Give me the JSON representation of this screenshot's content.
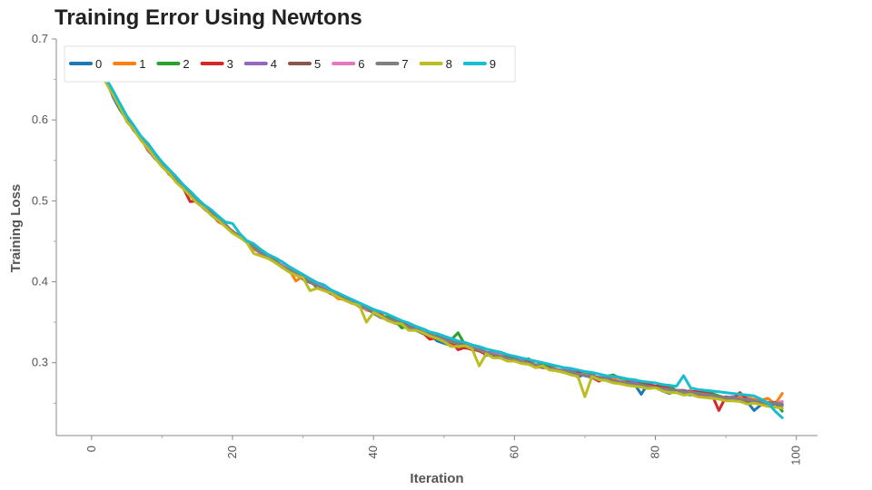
{
  "chart_data": {
    "type": "line",
    "title": "Training Error Using Newtons",
    "xlabel": "Iteration",
    "ylabel": "Training Loss",
    "xlim": [
      -5,
      103
    ],
    "ylim": [
      0.21,
      0.7
    ],
    "x_ticks": [
      0,
      20,
      40,
      60,
      80,
      100
    ],
    "y_ticks": [
      0.3,
      0.4,
      0.5,
      0.6,
      0.7
    ],
    "grid": false,
    "legend_position": "top-left",
    "colors": [
      "#1f77b4",
      "#ff7f0e",
      "#2ca02c",
      "#d62728",
      "#9467bd",
      "#8c564b",
      "#e377c2",
      "#7f7f7f",
      "#bcbd22",
      "#17becf"
    ],
    "x": [
      0,
      1,
      2,
      3,
      4,
      5,
      6,
      7,
      8,
      9,
      10,
      11,
      12,
      13,
      14,
      15,
      16,
      17,
      18,
      19,
      20,
      21,
      22,
      23,
      24,
      25,
      26,
      27,
      28,
      29,
      30,
      31,
      32,
      33,
      34,
      35,
      36,
      37,
      38,
      39,
      40,
      41,
      42,
      43,
      44,
      45,
      46,
      47,
      48,
      49,
      50,
      51,
      52,
      53,
      54,
      55,
      56,
      57,
      58,
      59,
      60,
      61,
      62,
      63,
      64,
      65,
      66,
      67,
      68,
      69,
      70,
      71,
      72,
      73,
      74,
      75,
      76,
      77,
      78,
      79,
      80,
      81,
      82,
      83,
      84,
      85,
      86,
      87,
      88,
      89,
      90,
      91,
      92,
      93,
      94,
      95,
      96,
      97,
      98
    ],
    "series": [
      {
        "name": "0",
        "values": [
          0.682,
          0.668,
          0.654,
          0.629,
          0.613,
          0.6,
          0.587,
          0.577,
          0.567,
          0.555,
          0.545,
          0.537,
          0.525,
          0.516,
          0.51,
          0.5,
          0.492,
          0.482,
          0.476,
          0.47,
          0.462,
          0.455,
          0.451,
          0.444,
          0.438,
          0.43,
          0.427,
          0.42,
          0.416,
          0.413,
          0.403,
          0.399,
          0.397,
          0.393,
          0.386,
          0.38,
          0.379,
          0.374,
          0.372,
          0.369,
          0.361,
          0.356,
          0.356,
          0.351,
          0.346,
          0.342,
          0.34,
          0.336,
          0.335,
          0.327,
          0.324,
          0.321,
          0.324,
          0.318,
          0.318,
          0.316,
          0.309,
          0.311,
          0.308,
          0.307,
          0.306,
          0.3,
          0.3,
          0.297,
          0.296,
          0.293,
          0.29,
          0.288,
          0.291,
          0.282,
          0.286,
          0.282,
          0.279,
          0.28,
          0.278,
          0.275,
          0.275,
          0.274,
          0.261,
          0.275,
          0.27,
          0.265,
          0.262,
          0.266,
          0.262,
          0.26,
          0.264,
          0.258,
          0.257,
          0.258,
          0.256,
          0.255,
          0.253,
          0.252,
          0.241,
          0.248,
          0.247,
          0.249,
          0.244
        ]
      },
      {
        "name": "1",
        "values": [
          0.684,
          0.667,
          0.647,
          0.632,
          0.617,
          0.6,
          0.588,
          0.578,
          0.562,
          0.553,
          0.544,
          0.533,
          0.526,
          0.516,
          0.506,
          0.499,
          0.49,
          0.484,
          0.474,
          0.469,
          0.463,
          0.456,
          0.449,
          0.44,
          0.436,
          0.431,
          0.426,
          0.419,
          0.415,
          0.401,
          0.407,
          0.401,
          0.395,
          0.391,
          0.386,
          0.379,
          0.378,
          0.376,
          0.372,
          0.365,
          0.363,
          0.356,
          0.353,
          0.349,
          0.346,
          0.345,
          0.34,
          0.338,
          0.334,
          0.33,
          0.331,
          0.323,
          0.32,
          0.321,
          0.319,
          0.314,
          0.311,
          0.309,
          0.309,
          0.305,
          0.304,
          0.302,
          0.299,
          0.294,
          0.295,
          0.297,
          0.292,
          0.29,
          0.289,
          0.287,
          0.285,
          0.285,
          0.28,
          0.281,
          0.281,
          0.277,
          0.277,
          0.273,
          0.27,
          0.269,
          0.27,
          0.267,
          0.263,
          0.266,
          0.263,
          0.266,
          0.26,
          0.26,
          0.262,
          0.259,
          0.257,
          0.258,
          0.258,
          0.257,
          0.255,
          0.254,
          0.256,
          0.249,
          0.262
        ]
      },
      {
        "name": "2",
        "values": [
          0.68,
          0.667,
          0.654,
          0.634,
          0.614,
          0.6,
          0.589,
          0.578,
          0.565,
          0.555,
          0.544,
          0.533,
          0.526,
          0.516,
          0.508,
          0.5,
          0.492,
          0.484,
          0.478,
          0.47,
          0.462,
          0.456,
          0.449,
          0.443,
          0.435,
          0.43,
          0.427,
          0.419,
          0.417,
          0.409,
          0.406,
          0.403,
          0.392,
          0.391,
          0.387,
          0.383,
          0.379,
          0.375,
          0.372,
          0.37,
          0.365,
          0.356,
          0.357,
          0.353,
          0.343,
          0.345,
          0.342,
          0.337,
          0.336,
          0.331,
          0.329,
          0.328,
          0.337,
          0.322,
          0.317,
          0.317,
          0.312,
          0.31,
          0.313,
          0.309,
          0.305,
          0.302,
          0.305,
          0.297,
          0.3,
          0.295,
          0.292,
          0.29,
          0.29,
          0.288,
          0.286,
          0.287,
          0.278,
          0.283,
          0.285,
          0.281,
          0.28,
          0.275,
          0.274,
          0.272,
          0.27,
          0.269,
          0.272,
          0.265,
          0.262,
          0.264,
          0.262,
          0.265,
          0.262,
          0.259,
          0.256,
          0.257,
          0.254,
          0.254,
          0.253,
          0.25,
          0.247,
          0.251,
          0.24
        ]
      },
      {
        "name": "3",
        "values": [
          0.683,
          0.666,
          0.647,
          0.634,
          0.617,
          0.6,
          0.587,
          0.577,
          0.566,
          0.553,
          0.543,
          0.535,
          0.524,
          0.516,
          0.499,
          0.5,
          0.491,
          0.486,
          0.478,
          0.469,
          0.462,
          0.457,
          0.45,
          0.443,
          0.438,
          0.431,
          0.425,
          0.418,
          0.415,
          0.408,
          0.405,
          0.401,
          0.394,
          0.39,
          0.385,
          0.384,
          0.381,
          0.374,
          0.372,
          0.368,
          0.364,
          0.36,
          0.354,
          0.349,
          0.348,
          0.343,
          0.343,
          0.337,
          0.329,
          0.331,
          0.327,
          0.327,
          0.316,
          0.319,
          0.316,
          0.315,
          0.31,
          0.309,
          0.306,
          0.303,
          0.303,
          0.302,
          0.302,
          0.296,
          0.294,
          0.294,
          0.291,
          0.288,
          0.286,
          0.288,
          0.284,
          0.282,
          0.277,
          0.283,
          0.277,
          0.276,
          0.276,
          0.275,
          0.277,
          0.273,
          0.271,
          0.272,
          0.268,
          0.263,
          0.265,
          0.264,
          0.265,
          0.262,
          0.261,
          0.241,
          0.258,
          0.256,
          0.263,
          0.255,
          0.252,
          0.25,
          0.25,
          0.251,
          0.248
        ]
      },
      {
        "name": "4",
        "values": [
          0.682,
          0.667,
          0.649,
          0.63,
          0.617,
          0.599,
          0.59,
          0.577,
          0.563,
          0.552,
          0.545,
          0.534,
          0.524,
          0.517,
          0.508,
          0.499,
          0.492,
          0.484,
          0.477,
          0.471,
          0.462,
          0.455,
          0.451,
          0.443,
          0.434,
          0.431,
          0.424,
          0.42,
          0.414,
          0.412,
          0.404,
          0.402,
          0.395,
          0.391,
          0.387,
          0.382,
          0.377,
          0.376,
          0.37,
          0.368,
          0.364,
          0.359,
          0.352,
          0.352,
          0.349,
          0.343,
          0.342,
          0.338,
          0.333,
          0.332,
          0.33,
          0.326,
          0.326,
          0.323,
          0.32,
          0.317,
          0.313,
          0.312,
          0.309,
          0.306,
          0.304,
          0.303,
          0.298,
          0.297,
          0.294,
          0.294,
          0.291,
          0.291,
          0.29,
          0.286,
          0.285,
          0.284,
          0.282,
          0.281,
          0.278,
          0.277,
          0.276,
          0.276,
          0.272,
          0.271,
          0.27,
          0.268,
          0.267,
          0.266,
          0.266,
          0.264,
          0.262,
          0.261,
          0.26,
          0.257,
          0.257,
          0.258,
          0.255,
          0.255,
          0.253,
          0.252,
          0.251,
          0.25,
          0.247
        ]
      },
      {
        "name": "5",
        "values": [
          0.682,
          0.667,
          0.648,
          0.632,
          0.617,
          0.602,
          0.589,
          0.578,
          0.566,
          0.555,
          0.545,
          0.533,
          0.525,
          0.517,
          0.509,
          0.5,
          0.49,
          0.483,
          0.475,
          0.469,
          0.462,
          0.456,
          0.449,
          0.443,
          0.436,
          0.432,
          0.424,
          0.419,
          0.415,
          0.41,
          0.404,
          0.4,
          0.394,
          0.392,
          0.386,
          0.382,
          0.378,
          0.376,
          0.37,
          0.366,
          0.362,
          0.359,
          0.354,
          0.351,
          0.35,
          0.345,
          0.341,
          0.338,
          0.333,
          0.333,
          0.328,
          0.325,
          0.324,
          0.322,
          0.317,
          0.316,
          0.312,
          0.31,
          0.307,
          0.307,
          0.304,
          0.301,
          0.301,
          0.297,
          0.294,
          0.294,
          0.291,
          0.29,
          0.287,
          0.286,
          0.284,
          0.282,
          0.282,
          0.28,
          0.278,
          0.276,
          0.276,
          0.273,
          0.272,
          0.27,
          0.27,
          0.268,
          0.267,
          0.265,
          0.265,
          0.263,
          0.26,
          0.26,
          0.259,
          0.258,
          0.256,
          0.256,
          0.253,
          0.253,
          0.252,
          0.251,
          0.25,
          0.25,
          0.249
        ]
      },
      {
        "name": "6",
        "values": [
          0.682,
          0.668,
          0.651,
          0.632,
          0.617,
          0.599,
          0.589,
          0.577,
          0.564,
          0.555,
          0.543,
          0.536,
          0.524,
          0.517,
          0.509,
          0.499,
          0.49,
          0.483,
          0.476,
          0.469,
          0.462,
          0.456,
          0.449,
          0.443,
          0.435,
          0.431,
          0.425,
          0.421,
          0.417,
          0.41,
          0.405,
          0.402,
          0.396,
          0.392,
          0.386,
          0.382,
          0.377,
          0.375,
          0.369,
          0.366,
          0.365,
          0.357,
          0.355,
          0.351,
          0.348,
          0.344,
          0.341,
          0.338,
          0.335,
          0.332,
          0.328,
          0.326,
          0.323,
          0.321,
          0.32,
          0.316,
          0.312,
          0.311,
          0.309,
          0.305,
          0.303,
          0.302,
          0.299,
          0.298,
          0.295,
          0.293,
          0.292,
          0.29,
          0.288,
          0.286,
          0.285,
          0.283,
          0.281,
          0.279,
          0.278,
          0.277,
          0.275,
          0.273,
          0.272,
          0.271,
          0.269,
          0.268,
          0.267,
          0.265,
          0.264,
          0.263,
          0.262,
          0.261,
          0.259,
          0.258,
          0.257,
          0.256,
          0.255,
          0.254,
          0.253,
          0.252,
          0.25,
          0.25,
          0.252
        ]
      },
      {
        "name": "7",
        "values": [
          0.682,
          0.666,
          0.648,
          0.631,
          0.616,
          0.6,
          0.588,
          0.577,
          0.565,
          0.554,
          0.544,
          0.534,
          0.525,
          0.516,
          0.508,
          0.5,
          0.491,
          0.484,
          0.477,
          0.47,
          0.462,
          0.456,
          0.449,
          0.443,
          0.436,
          0.43,
          0.426,
          0.419,
          0.415,
          0.41,
          0.405,
          0.4,
          0.395,
          0.391,
          0.386,
          0.382,
          0.378,
          0.374,
          0.37,
          0.367,
          0.363,
          0.358,
          0.355,
          0.352,
          0.348,
          0.344,
          0.341,
          0.338,
          0.335,
          0.332,
          0.329,
          0.326,
          0.323,
          0.321,
          0.318,
          0.316,
          0.313,
          0.31,
          0.308,
          0.306,
          0.304,
          0.301,
          0.299,
          0.297,
          0.295,
          0.293,
          0.291,
          0.29,
          0.288,
          0.286,
          0.284,
          0.283,
          0.281,
          0.28,
          0.278,
          0.276,
          0.275,
          0.273,
          0.272,
          0.271,
          0.269,
          0.268,
          0.267,
          0.266,
          0.264,
          0.263,
          0.262,
          0.261,
          0.26,
          0.258,
          0.257,
          0.256,
          0.255,
          0.254,
          0.253,
          0.252,
          0.251,
          0.25,
          0.249
        ]
      },
      {
        "name": "8",
        "values": [
          0.68,
          0.666,
          0.647,
          0.632,
          0.616,
          0.598,
          0.588,
          0.575,
          0.565,
          0.553,
          0.542,
          0.534,
          0.523,
          0.515,
          0.506,
          0.497,
          0.491,
          0.482,
          0.476,
          0.468,
          0.46,
          0.455,
          0.449,
          0.435,
          0.432,
          0.429,
          0.424,
          0.418,
          0.412,
          0.408,
          0.405,
          0.389,
          0.392,
          0.389,
          0.386,
          0.381,
          0.377,
          0.373,
          0.371,
          0.35,
          0.362,
          0.358,
          0.352,
          0.349,
          0.348,
          0.34,
          0.34,
          0.337,
          0.333,
          0.33,
          0.326,
          0.32,
          0.32,
          0.321,
          0.317,
          0.296,
          0.311,
          0.306,
          0.306,
          0.302,
          0.302,
          0.299,
          0.298,
          0.294,
          0.296,
          0.291,
          0.29,
          0.288,
          0.285,
          0.283,
          0.258,
          0.283,
          0.279,
          0.278,
          0.275,
          0.274,
          0.272,
          0.271,
          0.27,
          0.268,
          0.269,
          0.265,
          0.263,
          0.263,
          0.26,
          0.261,
          0.258,
          0.257,
          0.256,
          0.255,
          0.253,
          0.253,
          0.252,
          0.249,
          0.25,
          0.248,
          0.246,
          0.245,
          0.244
        ]
      },
      {
        "name": "9",
        "values": [
          0.683,
          0.668,
          0.652,
          0.637,
          0.621,
          0.605,
          0.593,
          0.58,
          0.571,
          0.559,
          0.548,
          0.539,
          0.53,
          0.52,
          0.512,
          0.503,
          0.495,
          0.489,
          0.481,
          0.474,
          0.472,
          0.46,
          0.451,
          0.447,
          0.44,
          0.434,
          0.43,
          0.425,
          0.419,
          0.414,
          0.409,
          0.404,
          0.399,
          0.396,
          0.39,
          0.386,
          0.382,
          0.378,
          0.374,
          0.37,
          0.366,
          0.363,
          0.36,
          0.356,
          0.352,
          0.349,
          0.345,
          0.342,
          0.338,
          0.336,
          0.333,
          0.33,
          0.327,
          0.325,
          0.322,
          0.32,
          0.317,
          0.315,
          0.313,
          0.31,
          0.308,
          0.306,
          0.304,
          0.302,
          0.3,
          0.298,
          0.296,
          0.294,
          0.293,
          0.291,
          0.289,
          0.288,
          0.286,
          0.284,
          0.283,
          0.282,
          0.28,
          0.279,
          0.277,
          0.276,
          0.275,
          0.273,
          0.272,
          0.271,
          0.284,
          0.269,
          0.267,
          0.266,
          0.265,
          0.264,
          0.263,
          0.262,
          0.261,
          0.26,
          0.259,
          0.255,
          0.25,
          0.24,
          0.232
        ]
      }
    ]
  }
}
